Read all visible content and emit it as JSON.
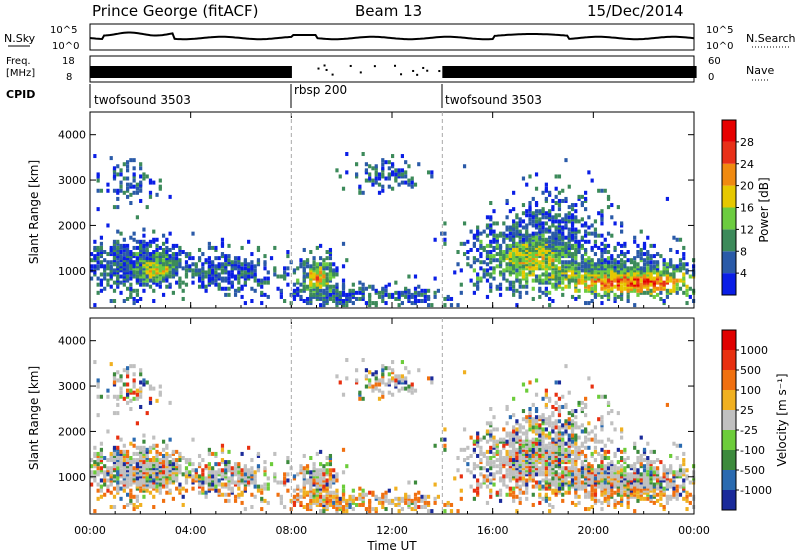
{
  "header": {
    "station": "Prince George (fitACF)",
    "beam": "Beam 13",
    "date": "15/Dec/2014"
  },
  "top_panels": {
    "nsky": {
      "label": "N.Sky",
      "ticks": [
        "10^5",
        "10^0"
      ],
      "right_label": "N.Search",
      "right_ticks": [
        "10^5",
        "10^0"
      ]
    },
    "freq": {
      "label_line1": "Freq.",
      "label_line2": "[MHz]",
      "ticks": [
        "18",
        "8"
      ],
      "right_label": "Nave",
      "right_ticks": [
        "60",
        "0"
      ]
    },
    "cpid": {
      "label": "CPID",
      "segments": [
        {
          "name": "twofsound 3503",
          "start_hour": 0,
          "end_hour": 8
        },
        {
          "name": "rbsp 200",
          "start_hour": 8,
          "end_hour": 14
        },
        {
          "name": "twofsound 3503",
          "start_hour": 14,
          "end_hour": 24
        }
      ]
    }
  },
  "chart_data": [
    {
      "type": "heatmap",
      "name": "power",
      "title": "",
      "xlabel": "",
      "ylabel": "Slant Range [km]",
      "x_ticks": [
        "00:00",
        "04:00",
        "08:00",
        "12:00",
        "16:00",
        "20:00",
        "00:00"
      ],
      "x_range_hours": [
        0,
        24
      ],
      "ylim": [
        180,
        4500
      ],
      "y_ticks": [
        1000,
        2000,
        3000,
        4000
      ],
      "colorbar": {
        "label": "Power [dB]",
        "ticks": [
          "4",
          "8",
          "12",
          "16",
          "20",
          "24",
          "28"
        ],
        "colors": [
          "#0a1ee6",
          "#2a5aa8",
          "#3c8a5a",
          "#6ccc40",
          "#e6c800",
          "#f08a10",
          "#e83018",
          "#e60000"
        ]
      }
    },
    {
      "type": "heatmap",
      "name": "velocity",
      "title": "",
      "xlabel": "Time UT",
      "ylabel": "Slant Range [km]",
      "x_ticks": [
        "00:00",
        "04:00",
        "08:00",
        "12:00",
        "16:00",
        "20:00",
        "00:00"
      ],
      "x_range_hours": [
        0,
        24
      ],
      "ylim": [
        180,
        4500
      ],
      "y_ticks": [
        1000,
        2000,
        3000,
        4000
      ],
      "colorbar": {
        "label": "Velocity [m s⁻¹]",
        "ticks": [
          "1000",
          "500",
          "100",
          "25",
          "-25",
          "-100",
          "-500",
          "-1000"
        ],
        "colors": [
          "#1a2a9a",
          "#2a6ab0",
          "#3c8a3c",
          "#6ccc3a",
          "#c0c0c0",
          "#f0b020",
          "#f07010",
          "#e83010",
          "#e00000"
        ]
      }
    }
  ]
}
